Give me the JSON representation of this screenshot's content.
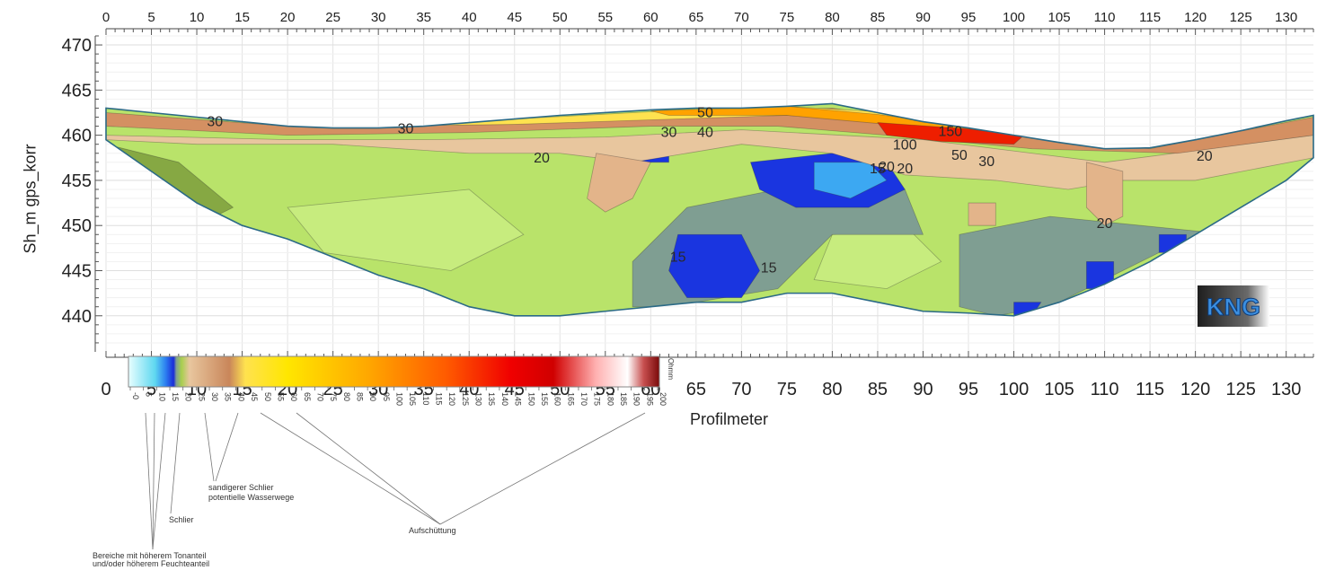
{
  "chart_data": {
    "type": "heatmap",
    "title": "",
    "xlabel": "Profilmeter",
    "ylabel": "Sh_m gps_korr",
    "xlim": [
      0,
      133
    ],
    "ylim": [
      436,
      471
    ],
    "x_ticks": [
      0,
      5,
      10,
      15,
      20,
      25,
      30,
      35,
      40,
      45,
      50,
      55,
      60,
      65,
      70,
      75,
      80,
      85,
      90,
      95,
      100,
      105,
      110,
      115,
      120,
      125,
      130
    ],
    "y_ticks": [
      440,
      445,
      450,
      455,
      460,
      465,
      470
    ],
    "surface": [
      [
        0,
        463
      ],
      [
        5,
        462.5
      ],
      [
        10,
        462
      ],
      [
        15,
        461.5
      ],
      [
        20,
        461
      ],
      [
        25,
        460.8
      ],
      [
        30,
        460.8
      ],
      [
        35,
        461
      ],
      [
        40,
        461.4
      ],
      [
        45,
        461.8
      ],
      [
        50,
        462.2
      ],
      [
        55,
        462.5
      ],
      [
        60,
        462.8
      ],
      [
        65,
        463
      ],
      [
        70,
        463
      ],
      [
        75,
        463.2
      ],
      [
        80,
        463.5
      ],
      [
        85,
        462.5
      ],
      [
        90,
        461.5
      ],
      [
        95,
        460.8
      ],
      [
        100,
        460
      ],
      [
        105,
        459.2
      ],
      [
        110,
        458.5
      ],
      [
        115,
        458.6
      ],
      [
        120,
        459.5
      ],
      [
        125,
        460.5
      ],
      [
        130,
        461.6
      ],
      [
        133,
        462.2
      ]
    ],
    "bottom": [
      [
        0,
        459.5
      ],
      [
        5,
        456
      ],
      [
        10,
        452.5
      ],
      [
        15,
        450
      ],
      [
        20,
        448.5
      ],
      [
        25,
        446.5
      ],
      [
        30,
        444.5
      ],
      [
        35,
        443
      ],
      [
        40,
        441
      ],
      [
        45,
        440
      ],
      [
        50,
        440
      ],
      [
        55,
        440.5
      ],
      [
        60,
        441
      ],
      [
        65,
        441.5
      ],
      [
        70,
        441.5
      ],
      [
        75,
        442.5
      ],
      [
        80,
        442.5
      ],
      [
        85,
        441.5
      ],
      [
        90,
        440.5
      ],
      [
        95,
        440.3
      ],
      [
        100,
        440
      ],
      [
        105,
        441.5
      ],
      [
        110,
        443.5
      ],
      [
        115,
        446
      ],
      [
        120,
        449
      ],
      [
        125,
        452
      ],
      [
        130,
        455
      ],
      [
        133,
        457.5
      ]
    ],
    "contour_labels": [
      "30",
      "30",
      "20",
      "30",
      "40",
      "50",
      "100",
      "150",
      "50",
      "30",
      "20",
      "15",
      "20",
      "20",
      "15",
      "15",
      "20"
    ],
    "colorbar": {
      "unit": "Ohmm",
      "ticks": [
        "-0",
        "5",
        "10",
        "15",
        "20",
        "25",
        "30",
        "35",
        "40",
        "45",
        "50",
        "55",
        "60",
        "65",
        "70",
        "75",
        "80",
        "85",
        "90",
        "95",
        "100",
        "105",
        "110",
        "115",
        "120",
        "125",
        "130",
        "135",
        "140",
        "145",
        "150",
        "155",
        "160",
        "165",
        "170",
        "175",
        "180",
        "185",
        "190",
        "195",
        "200"
      ],
      "colors": [
        "#e8feff",
        "#5fd8f0",
        "#2c7ff0",
        "#1a2cd8",
        "#7f9e92",
        "#b9e36a",
        "#a8cf4e",
        "#e8c69e",
        "#d9a077",
        "#c9865a",
        "#ffe24f",
        "#ffe600",
        "#ffc400",
        "#ffa800",
        "#ff8a00",
        "#ff5a00",
        "#ff2a00",
        "#f00000",
        "#d00000",
        "#ff7a7a",
        "#ffd0d0",
        "#ffffff",
        "#9a0e0e"
      ],
      "annotations": [
        {
          "text": "sandigerer Schlier",
          "id": "sand"
        },
        {
          "text": "potentielle Wasserwege",
          "id": "wasser"
        },
        {
          "text": "Schlier",
          "id": "schlier"
        },
        {
          "text": "Aufschüttung",
          "id": "auf"
        },
        {
          "text": "Bereiche mit höherem Tonanteil",
          "id": "ton1"
        },
        {
          "text": "und/oder höherem Feuchteanteil",
          "id": "ton2"
        }
      ]
    }
  },
  "logo_text": "KNG"
}
